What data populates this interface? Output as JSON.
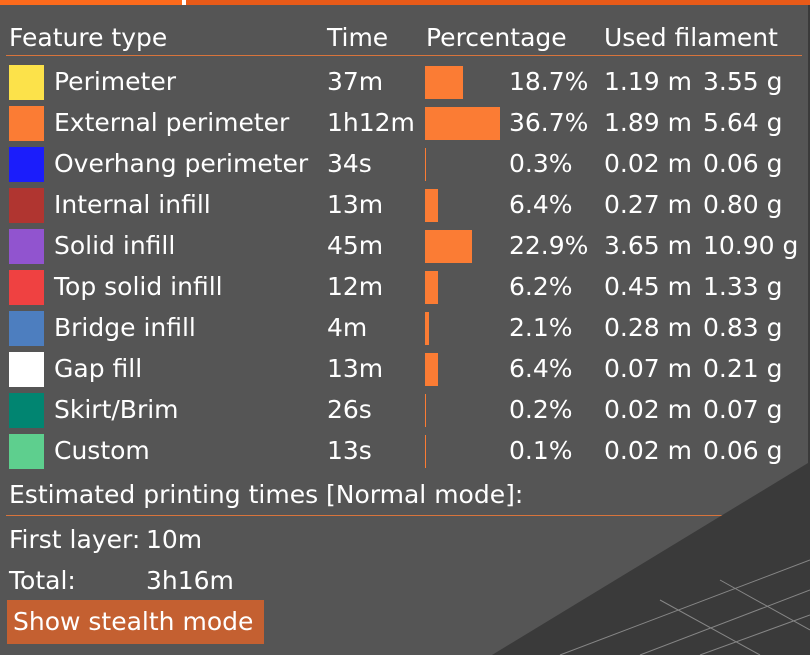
{
  "colors": {
    "accent": "#fc6a1c",
    "panel": "#555555",
    "bar": "#fb7c34",
    "button": "#c46031",
    "separator": "#d8743c"
  },
  "header": {
    "feature_type": "Feature type",
    "time": "Time",
    "percentage": "Percentage",
    "used_filament": "Used filament"
  },
  "features": [
    {
      "name": "Perimeter",
      "color": "#fce24a",
      "time": "37m",
      "percent": "18.7%",
      "pct_value": 18.7,
      "length": "1.19 m",
      "weight": "3.55 g"
    },
    {
      "name": "External perimeter",
      "color": "#fb7c34",
      "time": "1h12m",
      "percent": "36.7%",
      "pct_value": 36.7,
      "length": "1.89 m",
      "weight": "5.64 g"
    },
    {
      "name": "Overhang perimeter",
      "color": "#1b1dfb",
      "time": "34s",
      "percent": "0.3%",
      "pct_value": 0.3,
      "length": "0.02 m",
      "weight": "0.06 g"
    },
    {
      "name": "Internal infill",
      "color": "#b03530",
      "time": "13m",
      "percent": "6.4%",
      "pct_value": 6.4,
      "length": "0.27 m",
      "weight": "0.80 g"
    },
    {
      "name": "Solid infill",
      "color": "#9154cf",
      "time": "45m",
      "percent": "22.9%",
      "pct_value": 22.9,
      "length": "3.65 m",
      "weight": "10.90 g"
    },
    {
      "name": "Top solid infill",
      "color": "#ef4141",
      "time": "12m",
      "percent": "6.2%",
      "pct_value": 6.2,
      "length": "0.45 m",
      "weight": "1.33 g"
    },
    {
      "name": "Bridge infill",
      "color": "#4d7ebf",
      "time": "4m",
      "percent": "2.1%",
      "pct_value": 2.1,
      "length": "0.28 m",
      "weight": "0.83 g"
    },
    {
      "name": "Gap fill",
      "color": "#ffffff",
      "time": "13m",
      "percent": "6.4%",
      "pct_value": 6.4,
      "length": "0.07 m",
      "weight": "0.21 g"
    },
    {
      "name": "Skirt/Brim",
      "color": "#018571",
      "time": "26s",
      "percent": "0.2%",
      "pct_value": 0.2,
      "length": "0.02 m",
      "weight": "0.07 g"
    },
    {
      "name": "Custom",
      "color": "#5ecf8e",
      "time": "13s",
      "percent": "0.1%",
      "pct_value": 0.1,
      "length": "0.02 m",
      "weight": "0.06 g"
    }
  ],
  "estimated": {
    "title": "Estimated printing times [Normal mode]:",
    "first_layer_label": "First layer:",
    "first_layer_value": "10m",
    "total_label": "Total:",
    "total_value": "3h16m"
  },
  "stealth_button": "Show stealth mode"
}
